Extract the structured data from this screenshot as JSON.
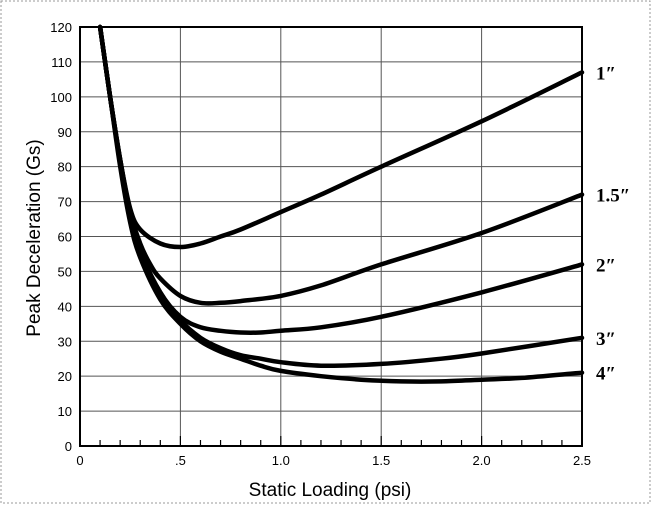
{
  "chart_data": {
    "type": "line",
    "title": "",
    "xlabel": "Static Loading (psi)",
    "ylabel": "Peak Deceleration (Gs)",
    "xlim": [
      0,
      2.5
    ],
    "ylim": [
      0,
      120
    ],
    "x_ticks": [
      {
        "value": 0,
        "label": "0"
      },
      {
        "value": 0.5,
        "label": ".5"
      },
      {
        "value": 1.0,
        "label": "1.0"
      },
      {
        "value": 1.5,
        "label": "1.5"
      },
      {
        "value": 2.0,
        "label": "2.0"
      },
      {
        "value": 2.5,
        "label": "2.5"
      }
    ],
    "y_ticks": [
      0,
      10,
      20,
      30,
      40,
      50,
      60,
      70,
      80,
      90,
      100,
      110,
      120
    ],
    "grid": true,
    "legend": "inline-right",
    "line_color": "#000000",
    "series": [
      {
        "name": "1″",
        "x": [
          0.1,
          0.15,
          0.2,
          0.25,
          0.3,
          0.4,
          0.5,
          0.6,
          0.7,
          0.8,
          1.0,
          1.2,
          1.5,
          2.0,
          2.5
        ],
        "y": [
          120,
          100,
          82,
          68,
          62,
          58,
          57,
          58,
          60,
          62,
          67,
          72,
          80,
          93,
          107
        ]
      },
      {
        "name": "1.5″",
        "x": [
          0.1,
          0.15,
          0.2,
          0.25,
          0.3,
          0.35,
          0.4,
          0.5,
          0.6,
          0.7,
          0.8,
          1.0,
          1.2,
          1.5,
          2.0,
          2.5
        ],
        "y": [
          120,
          100,
          82,
          67,
          58,
          52,
          48,
          43,
          41,
          41,
          41.5,
          43,
          46,
          52,
          61,
          72
        ]
      },
      {
        "name": "2″",
        "x": [
          0.1,
          0.15,
          0.2,
          0.25,
          0.3,
          0.4,
          0.5,
          0.6,
          0.7,
          0.8,
          0.9,
          1.0,
          1.2,
          1.5,
          2.0,
          2.5
        ],
        "y": [
          120,
          100,
          82,
          66,
          56,
          44,
          37,
          34,
          33,
          32.5,
          32.5,
          33,
          34,
          37,
          44,
          52
        ]
      },
      {
        "name": "3″",
        "x": [
          0.1,
          0.15,
          0.2,
          0.25,
          0.3,
          0.4,
          0.5,
          0.6,
          0.7,
          0.8,
          0.9,
          1.0,
          1.2,
          1.5,
          1.8,
          2.0,
          2.5
        ],
        "y": [
          120,
          100,
          81,
          65,
          55,
          44,
          36,
          31,
          28,
          26,
          25,
          24,
          23,
          23.5,
          25,
          26.5,
          31
        ]
      },
      {
        "name": "4″",
        "x": [
          0.1,
          0.15,
          0.2,
          0.25,
          0.3,
          0.4,
          0.5,
          0.6,
          0.7,
          0.8,
          0.9,
          1.0,
          1.2,
          1.4,
          1.6,
          1.8,
          2.0,
          2.2,
          2.5
        ],
        "y": [
          120,
          100,
          80,
          64,
          54,
          42,
          35,
          30,
          27,
          25,
          23,
          21.5,
          20,
          19,
          18.5,
          18.5,
          19,
          19.5,
          21
        ]
      }
    ]
  }
}
